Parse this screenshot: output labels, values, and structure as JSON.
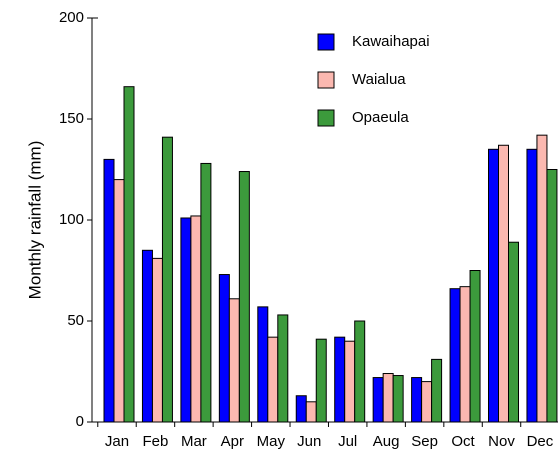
{
  "chart_data": {
    "type": "bar",
    "y_label": "Monthly rainfall (mm)",
    "categories": [
      "Jan",
      "Feb",
      "Mar",
      "Apr",
      "May",
      "Jun",
      "Jul",
      "Aug",
      "Sep",
      "Oct",
      "Nov",
      "Dec"
    ],
    "series": [
      {
        "name": "Kawaihapai",
        "color": "#0000ff",
        "values": [
          130,
          85,
          101,
          73,
          57,
          13,
          42,
          22,
          22,
          66,
          135,
          135
        ]
      },
      {
        "name": "Waialua",
        "color": "#fbb8b0",
        "values": [
          120,
          81,
          102,
          61,
          42,
          10,
          40,
          24,
          20,
          67,
          137,
          142
        ]
      },
      {
        "name": "Opaeula",
        "color": "#3c9a3c",
        "values": [
          166,
          141,
          128,
          124,
          53,
          41,
          50,
          23,
          31,
          75,
          89,
          125
        ]
      }
    ],
    "ylim": [
      0,
      200
    ],
    "yticks": [
      0,
      50,
      100,
      150,
      200
    ],
    "legend": "top-right"
  }
}
